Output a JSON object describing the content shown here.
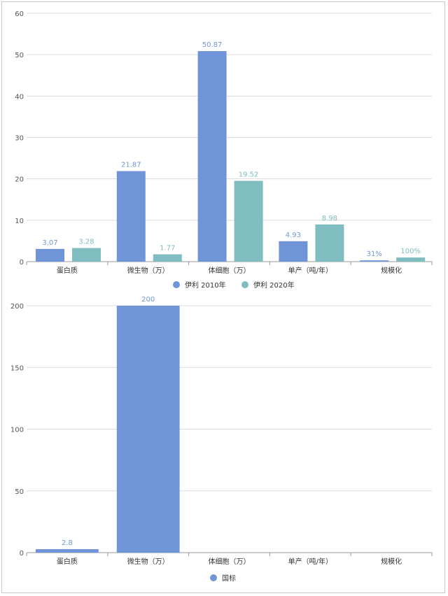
{
  "chart_data": [
    {
      "type": "bar",
      "categories": [
        "蛋白质",
        "微生物（万）",
        "体细胞（万）",
        "单产（吨/年）",
        "规模化"
      ],
      "series": [
        {
          "name": "伊利 2010年",
          "color": "#6f95d8",
          "values": [
            3.07,
            21.87,
            50.87,
            4.93,
            0.31
          ],
          "labels": [
            "3.07",
            "21.87",
            "50.87",
            "4.93",
            "31%"
          ]
        },
        {
          "name": "伊利 2020年",
          "color": "#7fbdc0",
          "values": [
            3.28,
            1.77,
            19.52,
            8.98,
            1.0
          ],
          "labels": [
            "3.28",
            "1.77",
            "19.52",
            "8.98",
            "100%"
          ]
        }
      ],
      "ylim": [
        0,
        60
      ],
      "yticks": [
        0,
        10,
        20,
        30,
        40,
        50,
        60
      ],
      "grid": true,
      "legend": "bottom"
    },
    {
      "type": "bar",
      "categories": [
        "蛋白质",
        "微生物（万）",
        "体细胞（万）",
        "单产（吨/年）",
        "规模化"
      ],
      "series": [
        {
          "name": "国标",
          "color": "#6f95d8",
          "values": [
            2.8,
            200,
            null,
            null,
            null
          ],
          "labels": [
            "2.8",
            "200",
            "",
            "",
            ""
          ]
        }
      ],
      "ylim": [
        0,
        200
      ],
      "yticks": [
        0,
        50,
        100,
        150,
        200
      ],
      "grid": true,
      "legend": "bottom"
    }
  ]
}
